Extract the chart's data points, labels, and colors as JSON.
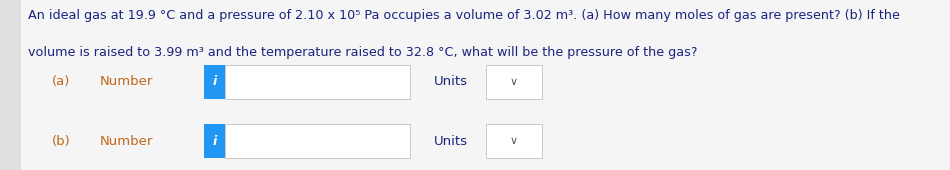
{
  "title_line1": "An ideal gas at 19.9 °C and a pressure of 2.10 x 10⁵ Pa occupies a volume of 3.02 m³. (a) How many moles of gas are present? (b) If the",
  "title_line2": "volume is raised to 3.99 m³ and the temperature raised to 32.8 °C, what will be the pressure of the gas?",
  "label_a_prefix": "(a)",
  "label_b_prefix": "(b)",
  "number_label": "Number",
  "units_label": "Units",
  "background_color": "#f5f5f5",
  "content_bg": "#ffffff",
  "text_color_dark": "#1a237e",
  "text_color_orange": "#c0671a",
  "box_border_color": "#c8c8c8",
  "blue_button_color": "#2196f3",
  "chevron_color": "#555555",
  "left_border_color": "#e0e0e0",
  "font_size_title": 9.2,
  "font_size_label": 9.5
}
